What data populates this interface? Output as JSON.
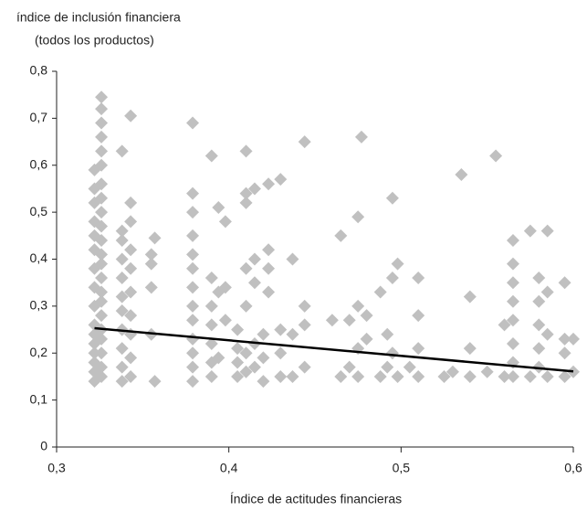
{
  "chart_data": {
    "type": "scatter",
    "title_lines": [
      "índice de inclusión financiera",
      "(todos los productos)"
    ],
    "xlabel": "Índice de actitudes financieras",
    "color": "#c0c0c0",
    "trend_color": "#000000",
    "xlim": [
      0.3,
      0.6
    ],
    "xticks": [
      {
        "value": 0.3,
        "label": "0,3"
      },
      {
        "value": 0.4,
        "label": "0,4"
      },
      {
        "value": 0.5,
        "label": "0,5"
      },
      {
        "value": 0.6,
        "label": "0,6"
      }
    ],
    "ylim": [
      0,
      0.8
    ],
    "yticks": [
      0,
      {
        "value": 0.1,
        "label": "0,1"
      },
      {
        "value": 0.2,
        "label": "0,2"
      },
      {
        "value": 0.3,
        "label": "0,3"
      },
      {
        "value": 0.4,
        "label": "0,4"
      },
      {
        "value": 0.5,
        "label": "0,5"
      },
      {
        "value": 0.6,
        "label": "0,6"
      },
      {
        "value": 0.7,
        "label": "0,7"
      },
      {
        "value": 0.8,
        "label": "0,8"
      }
    ],
    "x": [
      0.322,
      0.322,
      0.322,
      0.322,
      0.322,
      0.322,
      0.322,
      0.322,
      0.322,
      0.322,
      0.322,
      0.322,
      0.322,
      0.322,
      0.322,
      0.322,
      0.326,
      0.326,
      0.326,
      0.326,
      0.326,
      0.326,
      0.326,
      0.326,
      0.326,
      0.326,
      0.326,
      0.326,
      0.326,
      0.326,
      0.326,
      0.326,
      0.326,
      0.326,
      0.326,
      0.326,
      0.326,
      0.326,
      0.338,
      0.338,
      0.338,
      0.338,
      0.338,
      0.338,
      0.338,
      0.338,
      0.338,
      0.338,
      0.338,
      0.343,
      0.343,
      0.343,
      0.343,
      0.343,
      0.343,
      0.343,
      0.343,
      0.343,
      0.343,
      0.355,
      0.355,
      0.355,
      0.355,
      0.357,
      0.357,
      0.379,
      0.379,
      0.379,
      0.379,
      0.379,
      0.379,
      0.379,
      0.379,
      0.379,
      0.379,
      0.379,
      0.379,
      0.379,
      0.39,
      0.39,
      0.39,
      0.39,
      0.39,
      0.39,
      0.39,
      0.394,
      0.394,
      0.394,
      0.398,
      0.398,
      0.398,
      0.405,
      0.405,
      0.405,
      0.405,
      0.41,
      0.41,
      0.41,
      0.41,
      0.41,
      0.41,
      0.41,
      0.415,
      0.415,
      0.415,
      0.415,
      0.415,
      0.42,
      0.42,
      0.42,
      0.423,
      0.423,
      0.423,
      0.423,
      0.43,
      0.43,
      0.43,
      0.43,
      0.437,
      0.437,
      0.437,
      0.444,
      0.444,
      0.444,
      0.444,
      0.46,
      0.465,
      0.465,
      0.47,
      0.47,
      0.475,
      0.475,
      0.475,
      0.475,
      0.477,
      0.48,
      0.48,
      0.488,
      0.488,
      0.492,
      0.492,
      0.495,
      0.495,
      0.495,
      0.498,
      0.498,
      0.505,
      0.51,
      0.51,
      0.51,
      0.51,
      0.525,
      0.53,
      0.535,
      0.54,
      0.54,
      0.54,
      0.55,
      0.555,
      0.56,
      0.56,
      0.565,
      0.565,
      0.565,
      0.565,
      0.565,
      0.565,
      0.565,
      0.565,
      0.575,
      0.575,
      0.58,
      0.58,
      0.58,
      0.58,
      0.58,
      0.585,
      0.585,
      0.585,
      0.585,
      0.595,
      0.595,
      0.595,
      0.595,
      0.6,
      0.6
    ],
    "values": [
      0.14,
      0.16,
      0.18,
      0.2,
      0.22,
      0.24,
      0.26,
      0.3,
      0.34,
      0.38,
      0.42,
      0.45,
      0.48,
      0.52,
      0.55,
      0.59,
      0.15,
      0.17,
      0.2,
      0.23,
      0.25,
      0.28,
      0.31,
      0.33,
      0.36,
      0.39,
      0.41,
      0.44,
      0.47,
      0.5,
      0.53,
      0.56,
      0.6,
      0.63,
      0.66,
      0.69,
      0.72,
      0.745,
      0.14,
      0.17,
      0.21,
      0.25,
      0.29,
      0.32,
      0.36,
      0.4,
      0.44,
      0.46,
      0.63,
      0.15,
      0.19,
      0.24,
      0.28,
      0.33,
      0.38,
      0.42,
      0.48,
      0.52,
      0.705,
      0.24,
      0.34,
      0.39,
      0.41,
      0.14,
      0.445,
      0.14,
      0.17,
      0.2,
      0.23,
      0.27,
      0.3,
      0.34,
      0.38,
      0.41,
      0.45,
      0.5,
      0.54,
      0.69,
      0.15,
      0.18,
      0.22,
      0.26,
      0.3,
      0.36,
      0.62,
      0.19,
      0.33,
      0.51,
      0.27,
      0.34,
      0.48,
      0.15,
      0.18,
      0.21,
      0.25,
      0.16,
      0.2,
      0.3,
      0.38,
      0.52,
      0.54,
      0.63,
      0.17,
      0.22,
      0.35,
      0.4,
      0.55,
      0.14,
      0.19,
      0.24,
      0.33,
      0.38,
      0.42,
      0.56,
      0.15,
      0.2,
      0.25,
      0.57,
      0.15,
      0.24,
      0.4,
      0.17,
      0.26,
      0.3,
      0.65,
      0.27,
      0.15,
      0.45,
      0.17,
      0.27,
      0.15,
      0.21,
      0.3,
      0.49,
      0.66,
      0.23,
      0.28,
      0.15,
      0.33,
      0.17,
      0.24,
      0.2,
      0.36,
      0.53,
      0.15,
      0.39,
      0.17,
      0.15,
      0.21,
      0.28,
      0.36,
      0.15,
      0.16,
      0.58,
      0.15,
      0.21,
      0.32,
      0.16,
      0.62,
      0.15,
      0.26,
      0.15,
      0.18,
      0.22,
      0.27,
      0.31,
      0.35,
      0.39,
      0.44,
      0.15,
      0.46,
      0.17,
      0.21,
      0.26,
      0.31,
      0.36,
      0.15,
      0.24,
      0.33,
      0.46,
      0.15,
      0.2,
      0.23,
      0.35,
      0.16,
      0.23
    ],
    "trendline": {
      "x": [
        0.322,
        0.6
      ],
      "y": [
        0.253,
        0.161
      ]
    }
  }
}
